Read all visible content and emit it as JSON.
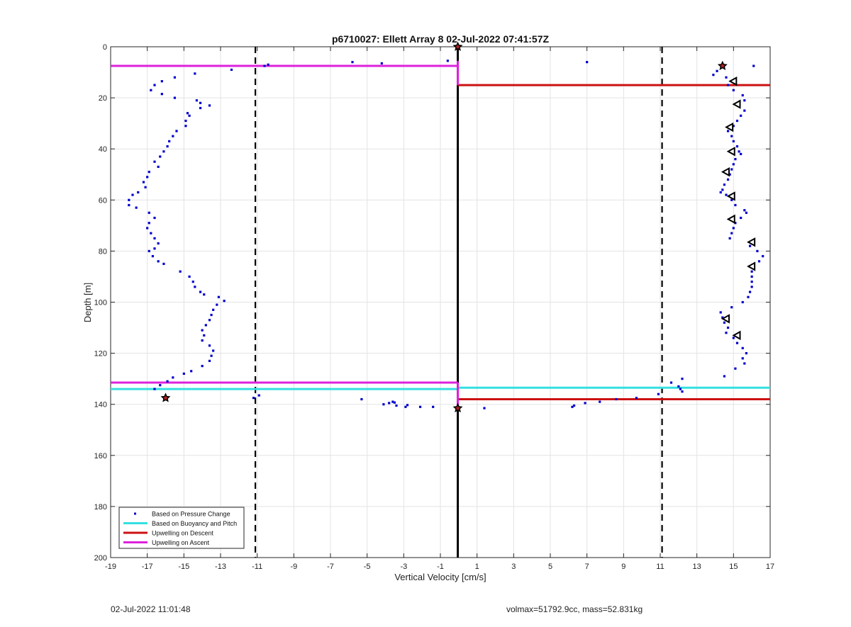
{
  "footer": {
    "timestamp": "02-Jul-2022 11:01:48",
    "stats": "volmax=51792.9cc, mass=52.831kg"
  },
  "chart_data": {
    "type": "scatter",
    "title": "p6710027: Ellett Array 8 02-Jul-2022 07:41:57Z",
    "xlabel": "Vertical Velocity [cm/s]",
    "ylabel": "Depth [m]",
    "xlim": [
      -19,
      17
    ],
    "ylim": [
      0,
      200
    ],
    "y_reversed": true,
    "xticks": [
      -19,
      -17,
      -15,
      -13,
      -11,
      -9,
      -7,
      -5,
      -3,
      -1,
      1,
      3,
      5,
      7,
      9,
      11,
      13,
      15,
      17
    ],
    "yticks": [
      0,
      20,
      40,
      60,
      80,
      100,
      120,
      140,
      160,
      180,
      200
    ],
    "xtick_labels": [
      "-19",
      "-17",
      "-15",
      "-13",
      "-11",
      "-9",
      "-7",
      "-5",
      "-3",
      "-1",
      "1",
      "3",
      "5",
      "7",
      "9",
      "11",
      "13",
      "15",
      "17"
    ],
    "ytick_labels": [
      "0",
      "20",
      "40",
      "60",
      "80",
      "100",
      "120",
      "140",
      "160",
      "180",
      "200"
    ],
    "grid": true,
    "legend_position": "bottom-left",
    "colors": {
      "pressure": "#0000cc",
      "buoyancy": "#33e0e0",
      "descent": "#cc1111",
      "ascent": "#dd22dd",
      "reference": "#000000"
    },
    "series": [
      {
        "name": "Based on Pressure Change",
        "style": "dots",
        "points": [
          [
            -16.8,
            17
          ],
          [
            -16.6,
            15
          ],
          [
            -16.2,
            13.5
          ],
          [
            -15.5,
            12
          ],
          [
            -14.4,
            10.5
          ],
          [
            -12.4,
            9
          ],
          [
            -10.6,
            7.5
          ],
          [
            -10.4,
            7
          ],
          [
            -16.2,
            18.5
          ],
          [
            -15.5,
            20
          ],
          [
            -14.3,
            21
          ],
          [
            -14.1,
            22
          ],
          [
            -13.6,
            23
          ],
          [
            -14.1,
            24
          ],
          [
            -14.8,
            26
          ],
          [
            -14.7,
            27
          ],
          [
            -14.9,
            29
          ],
          [
            -14.9,
            31
          ],
          [
            -15.4,
            33
          ],
          [
            -15.6,
            35
          ],
          [
            -15.8,
            37
          ],
          [
            -15.9,
            39
          ],
          [
            -16.1,
            41
          ],
          [
            -16.3,
            43
          ],
          [
            -16.6,
            45
          ],
          [
            -16.4,
            47
          ],
          [
            -16.9,
            49
          ],
          [
            -17.0,
            51
          ],
          [
            -17.2,
            53
          ],
          [
            -17.1,
            55
          ],
          [
            -17.5,
            57
          ],
          [
            -17.8,
            58
          ],
          [
            -18.0,
            60
          ],
          [
            -18.0,
            62
          ],
          [
            -17.6,
            63
          ],
          [
            -16.9,
            65
          ],
          [
            -16.6,
            67
          ],
          [
            -16.9,
            69
          ],
          [
            -17.0,
            71
          ],
          [
            -16.8,
            73
          ],
          [
            -16.6,
            75
          ],
          [
            -16.4,
            77
          ],
          [
            -16.6,
            79
          ],
          [
            -16.9,
            80
          ],
          [
            -16.7,
            82
          ],
          [
            -16.4,
            84
          ],
          [
            -16.1,
            85
          ],
          [
            -15.2,
            88
          ],
          [
            -14.7,
            90
          ],
          [
            -14.5,
            92
          ],
          [
            -14.4,
            94
          ],
          [
            -14.1,
            96
          ],
          [
            -13.9,
            97
          ],
          [
            -13.1,
            98
          ],
          [
            -12.8,
            99.5
          ],
          [
            -13.2,
            101
          ],
          [
            -13.4,
            103
          ],
          [
            -13.5,
            105
          ],
          [
            -13.6,
            107
          ],
          [
            -13.8,
            109
          ],
          [
            -14.0,
            111
          ],
          [
            -13.9,
            113
          ],
          [
            -14.0,
            115
          ],
          [
            -13.6,
            117
          ],
          [
            -13.4,
            119
          ],
          [
            -13.5,
            121
          ],
          [
            -13.6,
            123
          ],
          [
            -14.0,
            125
          ],
          [
            -14.6,
            127
          ],
          [
            -15.0,
            128
          ],
          [
            -15.6,
            129.5
          ],
          [
            -15.9,
            131
          ],
          [
            -16.3,
            132.5
          ],
          [
            -16.6,
            134
          ],
          [
            -11.2,
            137.5
          ],
          [
            -10.9,
            136.5
          ],
          [
            -5.8,
            6
          ],
          [
            -4.2,
            6.5
          ],
          [
            -0.6,
            5.5
          ],
          [
            7.0,
            6
          ],
          [
            16.1,
            7.5
          ],
          [
            -5.3,
            138
          ],
          [
            -4.1,
            140
          ],
          [
            -3.8,
            139.5
          ],
          [
            -3.6,
            139
          ],
          [
            -3.5,
            139.3
          ],
          [
            -3.4,
            140.5
          ],
          [
            -2.9,
            141
          ],
          [
            -2.8,
            140.3
          ],
          [
            -2.1,
            141
          ],
          [
            -1.4,
            141
          ],
          [
            1.4,
            141.5
          ],
          [
            6.2,
            141
          ],
          [
            6.3,
            140.5
          ],
          [
            6.9,
            139.5
          ],
          [
            7.7,
            139
          ],
          [
            8.6,
            138
          ],
          [
            9.7,
            137.5
          ],
          [
            10.9,
            136
          ],
          [
            11.6,
            131.5
          ],
          [
            12.0,
            133
          ],
          [
            12.1,
            134
          ],
          [
            12.2,
            135
          ],
          [
            12.2,
            130
          ],
          [
            13.9,
            11
          ],
          [
            14.1,
            9.5
          ],
          [
            14.6,
            12
          ],
          [
            14.7,
            15
          ],
          [
            15.0,
            17
          ],
          [
            15.5,
            19
          ],
          [
            15.6,
            21
          ],
          [
            15.3,
            23
          ],
          [
            15.6,
            25
          ],
          [
            15.4,
            27
          ],
          [
            15.2,
            29
          ],
          [
            15.0,
            31
          ],
          [
            14.7,
            33
          ],
          [
            14.9,
            35
          ],
          [
            15.0,
            37
          ],
          [
            15.2,
            39
          ],
          [
            15.3,
            41
          ],
          [
            15.4,
            42
          ],
          [
            15.1,
            44
          ],
          [
            15.0,
            46
          ],
          [
            14.9,
            48
          ],
          [
            14.8,
            50
          ],
          [
            14.7,
            52
          ],
          [
            14.5,
            54
          ],
          [
            14.4,
            56
          ],
          [
            14.3,
            57
          ],
          [
            14.6,
            58
          ],
          [
            14.9,
            60
          ],
          [
            15.1,
            62
          ],
          [
            15.6,
            64
          ],
          [
            15.7,
            65
          ],
          [
            15.4,
            67
          ],
          [
            15.1,
            69
          ],
          [
            15.0,
            71
          ],
          [
            14.9,
            73
          ],
          [
            14.8,
            75
          ],
          [
            15.9,
            78
          ],
          [
            16.3,
            80
          ],
          [
            16.6,
            82
          ],
          [
            16.4,
            84
          ],
          [
            16.1,
            86
          ],
          [
            16.0,
            88
          ],
          [
            16.0,
            90
          ],
          [
            16.0,
            92
          ],
          [
            16.0,
            94
          ],
          [
            15.9,
            96
          ],
          [
            15.8,
            98
          ],
          [
            15.5,
            100
          ],
          [
            14.9,
            102
          ],
          [
            14.3,
            104
          ],
          [
            14.4,
            106
          ],
          [
            14.5,
            108
          ],
          [
            14.7,
            110
          ],
          [
            14.6,
            112
          ],
          [
            15.0,
            114
          ],
          [
            15.2,
            116
          ],
          [
            15.5,
            118
          ],
          [
            15.7,
            120
          ],
          [
            15.5,
            122
          ],
          [
            15.6,
            124
          ],
          [
            15.1,
            126
          ],
          [
            14.5,
            129
          ]
        ]
      },
      {
        "name": "Based on Buoyancy and Pitch",
        "style": "line",
        "segments": [
          {
            "x": [
              -19,
              -0.05
            ],
            "y": 134
          },
          {
            "x": [
              -0.05,
              17
            ],
            "y": 133.5
          }
        ]
      },
      {
        "name": "Upwelling on Descent",
        "style": "line",
        "segments": [
          {
            "x": [
              -0.05,
              17
            ],
            "y": 15
          },
          {
            "x": [
              -0.05,
              17
            ],
            "y": 138
          },
          {
            "x": [
              -0.05,
              -0.05
            ],
            "y": [
              7,
              15
            ]
          },
          {
            "x": [
              -0.05,
              -0.05
            ],
            "y": [
              134,
              138
            ]
          }
        ]
      },
      {
        "name": "Upwelling on Ascent",
        "style": "line",
        "segments": [
          {
            "x": [
              -19,
              -0.05
            ],
            "y": 7.5
          },
          {
            "x": [
              -19,
              -0.05
            ],
            "y": 131.5
          },
          {
            "x": [
              -0.05,
              -0.05
            ],
            "y": [
              5.5,
              15
            ]
          },
          {
            "x": [
              -0.05,
              -0.05
            ],
            "y": [
              131.5,
              141
            ]
          }
        ]
      }
    ],
    "reference_lines": [
      {
        "x": -0.05,
        "style": "solid"
      },
      {
        "x": -11.1,
        "style": "dashed"
      },
      {
        "x": 11.1,
        "style": "dashed"
      }
    ],
    "star_markers": [
      [
        -0.05,
        0
      ],
      [
        14.4,
        7.5
      ],
      [
        -16.0,
        137.5
      ],
      [
        -0.05,
        141.5
      ]
    ],
    "triangle_markers": [
      [
        15.0,
        13.5
      ],
      [
        15.2,
        22.5
      ],
      [
        14.8,
        31.5
      ],
      [
        14.9,
        41
      ],
      [
        14.6,
        49
      ],
      [
        14.9,
        58.5
      ],
      [
        14.9,
        67.5
      ],
      [
        16.0,
        76.5
      ],
      [
        16.0,
        86
      ],
      [
        14.6,
        106.5
      ],
      [
        15.2,
        113
      ]
    ]
  }
}
